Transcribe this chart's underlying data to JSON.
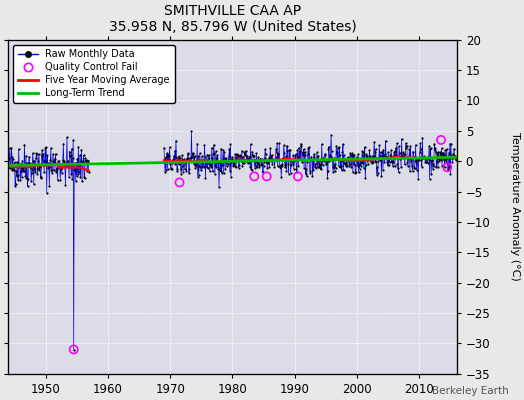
{
  "title": "SMITHVILLE CAA AP",
  "subtitle": "35.958 N, 85.796 W (United States)",
  "ylabel": "Temperature Anomaly (°C)",
  "watermark": "Berkeley Earth",
  "xlim": [
    1944,
    2016
  ],
  "ylim": [
    -35,
    20
  ],
  "yticks": [
    -35,
    -30,
    -25,
    -20,
    -15,
    -10,
    -5,
    0,
    5,
    10,
    15,
    20
  ],
  "xticks": [
    1950,
    1960,
    1970,
    1980,
    1990,
    2000,
    2010
  ],
  "fig_facecolor": "#e8e8e8",
  "plot_bg_color": "#dcdce8",
  "grid_color": "#ffffff",
  "raw_line_color": "#0000dd",
  "raw_dot_color": "#000000",
  "qc_fail_color": "#ff00ff",
  "moving_avg_color": "#ff0000",
  "trend_color": "#00bb00",
  "seed": 42,
  "start_year": 1944,
  "gap_start": 1957,
  "gap_end": 1969,
  "end_year": 2015,
  "outlier_year": 1954.5,
  "outlier_value": -31.0,
  "qc_fail_points": [
    {
      "year": 1954.5,
      "value": -31.0
    },
    {
      "year": 1971.5,
      "value": -3.5
    },
    {
      "year": 1983.5,
      "value": -2.5
    },
    {
      "year": 1985.5,
      "value": -2.5
    },
    {
      "year": 1990.5,
      "value": -2.5
    },
    {
      "year": 2013.5,
      "value": 3.5
    },
    {
      "year": 2014.5,
      "value": -1.0
    }
  ]
}
